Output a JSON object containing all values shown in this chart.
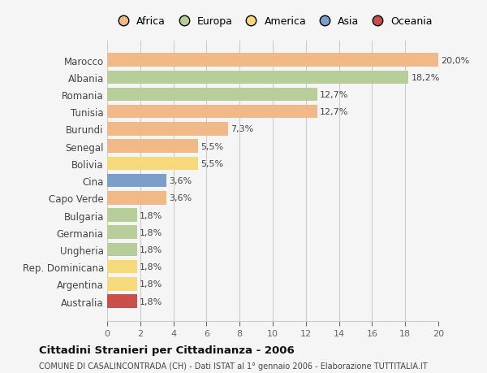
{
  "countries": [
    "Marocco",
    "Albania",
    "Romania",
    "Tunisia",
    "Burundi",
    "Senegal",
    "Bolivia",
    "Cina",
    "Capo Verde",
    "Bulgaria",
    "Germania",
    "Ungheria",
    "Rep. Dominicana",
    "Argentina",
    "Australia"
  ],
  "values": [
    20.0,
    18.2,
    12.7,
    12.7,
    7.3,
    5.5,
    5.5,
    3.6,
    3.6,
    1.8,
    1.8,
    1.8,
    1.8,
    1.8,
    1.8
  ],
  "labels": [
    "20,0%",
    "18,2%",
    "12,7%",
    "12,7%",
    "7,3%",
    "5,5%",
    "5,5%",
    "3,6%",
    "3,6%",
    "1,8%",
    "1,8%",
    "1,8%",
    "1,8%",
    "1,8%",
    "1,8%"
  ],
  "colors": [
    "#F0B987",
    "#B8CE9A",
    "#B8CE9A",
    "#F0B987",
    "#F0B987",
    "#F0B987",
    "#F5D97A",
    "#7B9FC9",
    "#F0B987",
    "#B8CE9A",
    "#B8CE9A",
    "#B8CE9A",
    "#F5D97A",
    "#F5D97A",
    "#C9504A"
  ],
  "continent_colors": {
    "Africa": "#F0B987",
    "Europa": "#B8CE9A",
    "America": "#F5D97A",
    "Asia": "#7B9FC9",
    "Oceania": "#C9504A"
  },
  "xlim": [
    0,
    20
  ],
  "xticks": [
    0,
    2,
    4,
    6,
    8,
    10,
    12,
    14,
    16,
    18,
    20
  ],
  "title": "Cittadini Stranieri per Cittadinanza - 2006",
  "subtitle": "COMUNE DI CASALINCONTRADA (CH) - Dati ISTAT al 1° gennaio 2006 - Elaborazione TUTTITALIA.IT",
  "background_color": "#F5F5F5",
  "plot_bg_color": "#F5F5F5",
  "grid_color": "#CCCCCC",
  "bar_height": 0.78
}
